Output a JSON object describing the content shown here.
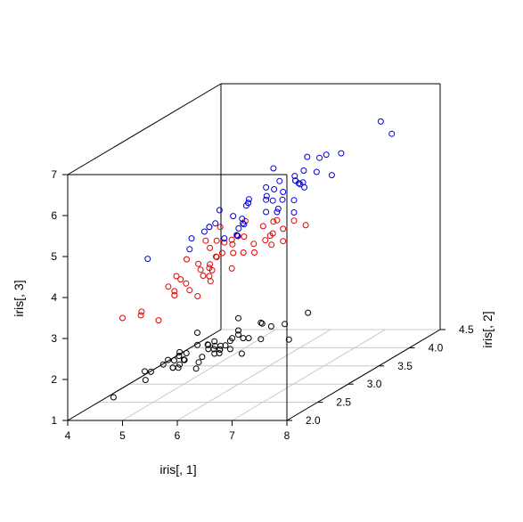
{
  "chart_data": {
    "type": "scatter",
    "subtype": "3d-scatter",
    "title": "",
    "xlabel": "iris[, 1]",
    "ylabel": "iris[, 2]",
    "zlabel": "iris[, 3]",
    "xlim": [
      4,
      8
    ],
    "ylim": [
      2,
      4.5
    ],
    "zlim": [
      1,
      7
    ],
    "x_ticks": [
      "4",
      "5",
      "6",
      "7",
      "8"
    ],
    "y_ticks": [
      "2.0",
      "2.5",
      "3.0",
      "3.5",
      "4.0",
      "4.5"
    ],
    "z_ticks": [
      "1",
      "2",
      "3",
      "4",
      "5",
      "6",
      "7"
    ],
    "grid": "bottom-plane",
    "legend": "none",
    "series": [
      {
        "color": "#000000",
        "points": [
          [
            5.1,
            3.5,
            1.4
          ],
          [
            4.9,
            3.0,
            1.4
          ],
          [
            4.7,
            3.2,
            1.3
          ],
          [
            4.6,
            3.1,
            1.5
          ],
          [
            5.0,
            3.6,
            1.4
          ],
          [
            5.4,
            3.9,
            1.7
          ],
          [
            4.6,
            3.4,
            1.4
          ],
          [
            5.0,
            3.4,
            1.5
          ],
          [
            4.4,
            2.9,
            1.4
          ],
          [
            4.9,
            3.1,
            1.5
          ],
          [
            5.4,
            3.7,
            1.5
          ],
          [
            4.8,
            3.4,
            1.6
          ],
          [
            4.8,
            3.0,
            1.4
          ],
          [
            4.3,
            3.0,
            1.1
          ],
          [
            5.8,
            4.0,
            1.2
          ],
          [
            5.7,
            4.4,
            1.5
          ],
          [
            5.4,
            3.9,
            1.3
          ],
          [
            5.1,
            3.5,
            1.4
          ],
          [
            5.7,
            3.8,
            1.7
          ],
          [
            5.1,
            3.8,
            1.5
          ],
          [
            5.4,
            3.4,
            1.7
          ],
          [
            5.1,
            3.7,
            1.5
          ],
          [
            4.6,
            3.6,
            1.0
          ],
          [
            5.1,
            3.3,
            1.7
          ],
          [
            4.8,
            3.4,
            1.9
          ],
          [
            5.0,
            3.0,
            1.6
          ],
          [
            5.0,
            3.4,
            1.6
          ],
          [
            5.2,
            3.5,
            1.5
          ],
          [
            5.2,
            3.4,
            1.4
          ],
          [
            4.7,
            3.2,
            1.6
          ],
          [
            4.8,
            3.1,
            1.6
          ],
          [
            5.4,
            3.4,
            1.5
          ],
          [
            5.2,
            4.1,
            1.5
          ],
          [
            5.5,
            4.2,
            1.4
          ],
          [
            4.9,
            3.1,
            1.5
          ],
          [
            5.0,
            3.2,
            1.2
          ],
          [
            5.5,
            3.5,
            1.3
          ],
          [
            4.9,
            3.6,
            1.4
          ],
          [
            4.4,
            3.0,
            1.3
          ],
          [
            5.1,
            3.4,
            1.5
          ],
          [
            5.0,
            3.5,
            1.3
          ],
          [
            4.5,
            2.3,
            1.3
          ],
          [
            4.4,
            3.2,
            1.3
          ],
          [
            5.0,
            3.5,
            1.6
          ],
          [
            5.1,
            3.8,
            1.9
          ],
          [
            4.8,
            3.0,
            1.4
          ],
          [
            5.1,
            3.8,
            1.6
          ],
          [
            4.6,
            3.2,
            1.4
          ],
          [
            5.3,
            3.7,
            1.5
          ],
          [
            5.0,
            3.3,
            1.4
          ]
        ]
      },
      {
        "color": "#df0000",
        "points": [
          [
            7.0,
            3.2,
            4.7
          ],
          [
            6.4,
            3.2,
            4.5
          ],
          [
            6.9,
            3.1,
            4.9
          ],
          [
            5.5,
            2.3,
            4.0
          ],
          [
            6.5,
            2.8,
            4.6
          ],
          [
            5.7,
            2.8,
            4.5
          ],
          [
            6.3,
            3.3,
            4.7
          ],
          [
            4.9,
            2.4,
            3.3
          ],
          [
            6.6,
            2.9,
            4.6
          ],
          [
            5.2,
            2.7,
            3.9
          ],
          [
            5.0,
            2.0,
            3.5
          ],
          [
            5.9,
            3.0,
            4.2
          ],
          [
            6.0,
            2.2,
            4.0
          ],
          [
            6.1,
            2.9,
            4.7
          ],
          [
            5.6,
            2.9,
            3.6
          ],
          [
            6.7,
            3.1,
            4.4
          ],
          [
            5.6,
            3.0,
            4.5
          ],
          [
            5.8,
            2.7,
            4.1
          ],
          [
            6.2,
            2.2,
            4.5
          ],
          [
            5.6,
            2.5,
            3.9
          ],
          [
            5.9,
            3.2,
            4.8
          ],
          [
            6.1,
            2.8,
            4.0
          ],
          [
            6.3,
            2.5,
            4.9
          ],
          [
            6.1,
            2.8,
            4.7
          ],
          [
            6.4,
            2.9,
            4.3
          ],
          [
            6.6,
            3.0,
            4.4
          ],
          [
            6.8,
            2.8,
            4.8
          ],
          [
            6.7,
            3.0,
            5.0
          ],
          [
            6.0,
            2.9,
            4.5
          ],
          [
            5.7,
            2.6,
            3.5
          ],
          [
            5.5,
            2.4,
            3.8
          ],
          [
            5.5,
            2.4,
            3.7
          ],
          [
            5.8,
            2.7,
            3.9
          ],
          [
            6.0,
            2.7,
            5.1
          ],
          [
            5.4,
            3.0,
            4.5
          ],
          [
            6.0,
            3.4,
            4.5
          ],
          [
            6.7,
            3.1,
            4.7
          ],
          [
            6.3,
            2.3,
            4.4
          ],
          [
            5.6,
            3.0,
            4.1
          ],
          [
            5.5,
            2.5,
            4.0
          ],
          [
            5.5,
            2.6,
            4.4
          ],
          [
            6.1,
            3.0,
            4.6
          ],
          [
            5.8,
            2.6,
            4.0
          ],
          [
            5.0,
            2.3,
            3.3
          ],
          [
            5.6,
            2.7,
            4.2
          ],
          [
            5.7,
            3.0,
            4.2
          ],
          [
            5.7,
            2.9,
            4.2
          ],
          [
            6.2,
            2.9,
            4.3
          ],
          [
            5.1,
            2.5,
            3.0
          ],
          [
            5.7,
            2.8,
            4.1
          ]
        ]
      },
      {
        "color": "#0000df",
        "points": [
          [
            6.3,
            3.3,
            6.0
          ],
          [
            5.8,
            2.7,
            5.1
          ],
          [
            7.1,
            3.0,
            5.9
          ],
          [
            6.3,
            2.9,
            5.6
          ],
          [
            6.5,
            3.0,
            5.8
          ],
          [
            7.6,
            3.0,
            6.6
          ],
          [
            4.9,
            2.5,
            4.5
          ],
          [
            7.3,
            2.9,
            6.3
          ],
          [
            6.7,
            2.5,
            5.8
          ],
          [
            7.2,
            3.6,
            6.1
          ],
          [
            6.5,
            3.2,
            5.1
          ],
          [
            6.4,
            2.7,
            5.3
          ],
          [
            6.8,
            3.0,
            5.5
          ],
          [
            5.7,
            2.5,
            5.0
          ],
          [
            5.8,
            2.8,
            5.1
          ],
          [
            6.4,
            3.2,
            5.3
          ],
          [
            6.5,
            3.0,
            5.5
          ],
          [
            7.7,
            3.8,
            6.7
          ],
          [
            7.7,
            2.6,
            6.9
          ],
          [
            6.0,
            2.2,
            5.0
          ],
          [
            6.9,
            3.2,
            5.7
          ],
          [
            5.6,
            2.8,
            4.9
          ],
          [
            7.7,
            2.8,
            6.7
          ],
          [
            6.3,
            2.7,
            4.9
          ],
          [
            6.7,
            3.3,
            5.7
          ],
          [
            7.2,
            3.2,
            6.0
          ],
          [
            6.2,
            2.8,
            4.8
          ],
          [
            6.1,
            3.0,
            4.9
          ],
          [
            6.4,
            2.8,
            5.6
          ],
          [
            7.2,
            3.0,
            5.8
          ],
          [
            7.4,
            2.8,
            6.1
          ],
          [
            7.9,
            3.8,
            6.4
          ],
          [
            6.4,
            2.8,
            5.6
          ],
          [
            6.3,
            2.8,
            5.1
          ],
          [
            6.1,
            2.6,
            5.6
          ],
          [
            7.7,
            3.0,
            6.1
          ],
          [
            6.3,
            3.4,
            5.6
          ],
          [
            6.4,
            3.1,
            5.5
          ],
          [
            6.0,
            3.0,
            4.8
          ],
          [
            6.9,
            3.1,
            5.4
          ],
          [
            6.7,
            3.1,
            5.6
          ],
          [
            6.9,
            3.1,
            5.1
          ],
          [
            5.8,
            2.7,
            5.1
          ],
          [
            6.8,
            3.2,
            5.9
          ],
          [
            6.7,
            3.3,
            5.7
          ],
          [
            6.7,
            3.0,
            5.2
          ],
          [
            6.3,
            2.5,
            5.0
          ],
          [
            6.5,
            3.0,
            5.2
          ],
          [
            6.2,
            3.4,
            5.4
          ],
          [
            5.9,
            3.0,
            5.1
          ]
        ]
      }
    ]
  }
}
